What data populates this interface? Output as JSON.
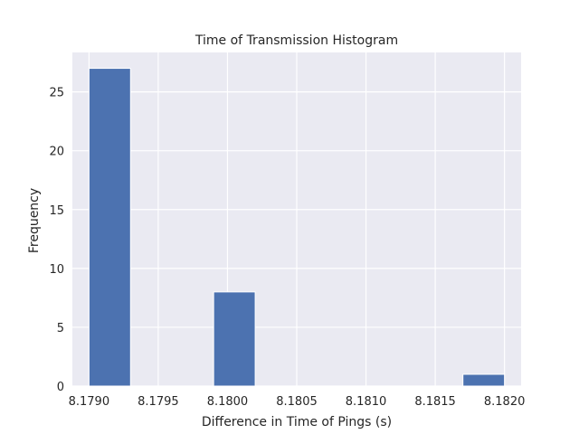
{
  "chart_data": {
    "type": "bar",
    "title": "Time of Transmission Histogram",
    "xlabel": "Difference in Time of Pings (s)",
    "ylabel": "Frequency",
    "xlim": [
      8.17888,
      8.18212
    ],
    "ylim": [
      0,
      28.35
    ],
    "xticks": [
      8.179,
      8.1795,
      8.18,
      8.1805,
      8.181,
      8.1815,
      8.182
    ],
    "xtick_labels": [
      "8.1790",
      "8.1795",
      "8.1800",
      "8.1805",
      "8.1810",
      "8.1815",
      "8.1820"
    ],
    "yticks": [
      0,
      5,
      10,
      15,
      20,
      25
    ],
    "ytick_labels": [
      "0",
      "5",
      "10",
      "15",
      "20",
      "25"
    ],
    "grid": true,
    "bins": [
      {
        "start": 8.179,
        "end": 8.1793,
        "count": 27
      },
      {
        "start": 8.1793,
        "end": 8.1796,
        "count": 0
      },
      {
        "start": 8.1796,
        "end": 8.1799,
        "count": 0
      },
      {
        "start": 8.1799,
        "end": 8.1802,
        "count": 8
      },
      {
        "start": 8.1802,
        "end": 8.1805,
        "count": 0
      },
      {
        "start": 8.1805,
        "end": 8.1808,
        "count": 0
      },
      {
        "start": 8.1808,
        "end": 8.1811,
        "count": 0
      },
      {
        "start": 8.1811,
        "end": 8.1814,
        "count": 0
      },
      {
        "start": 8.1814,
        "end": 8.1817,
        "count": 0
      },
      {
        "start": 8.1817,
        "end": 8.182,
        "count": 1
      }
    ],
    "colors": {
      "bar": "#4c72b0",
      "plot_background": "#eaeaf2",
      "grid": "#ffffff",
      "text": "#262626"
    }
  }
}
